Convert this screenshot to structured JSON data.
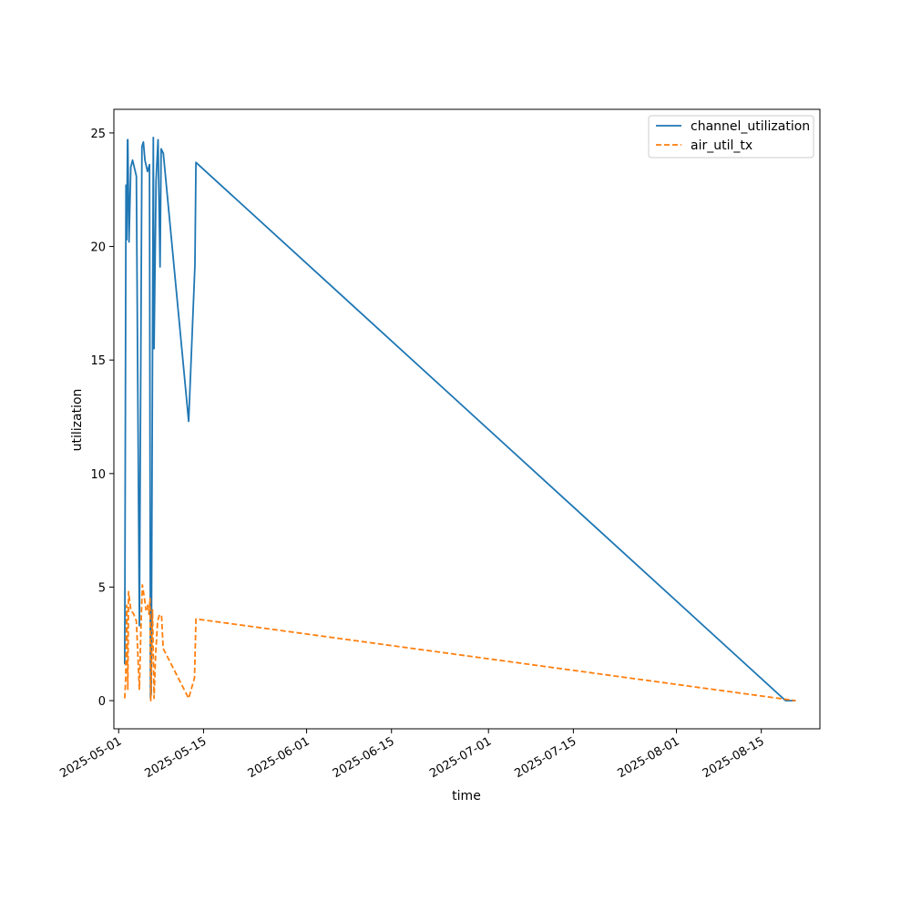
{
  "chart_data": {
    "type": "line",
    "title": "",
    "xlabel": "time",
    "ylabel": "utilization",
    "xlim": [
      "2025-04-30T05:00",
      "2025-08-24T16:00"
    ],
    "ylim": [
      -1.24,
      26.04
    ],
    "xticks": [
      "2025-05-01",
      "2025-05-15",
      "2025-06-01",
      "2025-06-15",
      "2025-07-01",
      "2025-07-15",
      "2025-08-01",
      "2025-08-15"
    ],
    "yticks": [
      0,
      5,
      10,
      15,
      20,
      25
    ],
    "legend_position": "top-right",
    "grid": false,
    "series": [
      {
        "name": "channel_utilization",
        "color": "#1f77b4",
        "style": "solid",
        "points": [
          [
            "2025-05-02T00:00",
            1.6
          ],
          [
            "2025-05-02T05:00",
            22.7
          ],
          [
            "2025-05-02T08:00",
            20.3
          ],
          [
            "2025-05-02T11:00",
            24.7
          ],
          [
            "2025-05-02T12:00",
            24.7
          ],
          [
            "2025-05-02T17:00",
            20.2
          ],
          [
            "2025-05-03T00:00",
            23.5
          ],
          [
            "2025-05-03T07:00",
            23.8
          ],
          [
            "2025-05-03T22:00",
            23.1
          ],
          [
            "2025-05-04T10:00",
            3.3
          ],
          [
            "2025-05-04T20:00",
            24.4
          ],
          [
            "2025-05-05T02:00",
            24.6
          ],
          [
            "2025-05-05T08:00",
            23.8
          ],
          [
            "2025-05-05T18:00",
            23.3
          ],
          [
            "2025-05-06T02:00",
            23.6
          ],
          [
            "2025-05-06T06:00",
            0.1
          ],
          [
            "2025-05-06T09:00",
            0.3
          ],
          [
            "2025-05-06T17:00",
            24.8
          ],
          [
            "2025-05-06T20:00",
            15.5
          ],
          [
            "2025-05-07T04:00",
            22.9
          ],
          [
            "2025-05-07T12:00",
            24.7
          ],
          [
            "2025-05-07T20:00",
            19.1
          ],
          [
            "2025-05-08T00:00",
            24.3
          ],
          [
            "2025-05-08T09:00",
            24.1
          ],
          [
            "2025-05-12T13:00",
            12.3
          ],
          [
            "2025-05-13T14:00",
            19.2
          ],
          [
            "2025-05-13T18:00",
            23.7
          ],
          [
            "2025-08-19T00:00",
            0.0
          ],
          [
            "2025-08-20T16:00",
            0.0
          ]
        ]
      },
      {
        "name": "air_util_tx",
        "color": "#ff7f0e",
        "style": "dashed",
        "points": [
          [
            "2025-05-02T00:00",
            0.1
          ],
          [
            "2025-05-02T04:00",
            1.0
          ],
          [
            "2025-05-02T08:00",
            4.2
          ],
          [
            "2025-05-02T12:00",
            0.5
          ],
          [
            "2025-05-02T15:00",
            4.8
          ],
          [
            "2025-05-03T00:00",
            4.0
          ],
          [
            "2025-05-03T12:00",
            3.8
          ],
          [
            "2025-05-03T22:00",
            3.5
          ],
          [
            "2025-05-04T10:00",
            0.5
          ],
          [
            "2025-05-04T16:00",
            3.2
          ],
          [
            "2025-05-04T22:00",
            5.1
          ],
          [
            "2025-05-05T06:00",
            4.5
          ],
          [
            "2025-05-05T12:00",
            4.0
          ],
          [
            "2025-05-05T18:00",
            4.2
          ],
          [
            "2025-05-06T00:00",
            3.8
          ],
          [
            "2025-05-06T04:00",
            4.5
          ],
          [
            "2025-05-06T07:00",
            0.0
          ],
          [
            "2025-05-06T10:00",
            1.6
          ],
          [
            "2025-05-06T14:00",
            4.0
          ],
          [
            "2025-05-06T20:00",
            0.1
          ],
          [
            "2025-05-07T02:00",
            2.0
          ],
          [
            "2025-05-07T10:00",
            3.5
          ],
          [
            "2025-05-07T18:00",
            3.8
          ],
          [
            "2025-05-08T02:00",
            3.7
          ],
          [
            "2025-05-08T08:00",
            2.3
          ],
          [
            "2025-05-12T13:00",
            0.1
          ],
          [
            "2025-05-13T12:00",
            1.0
          ],
          [
            "2025-05-13T18:00",
            3.6
          ],
          [
            "2025-08-20T16:00",
            0.0
          ]
        ]
      }
    ]
  }
}
